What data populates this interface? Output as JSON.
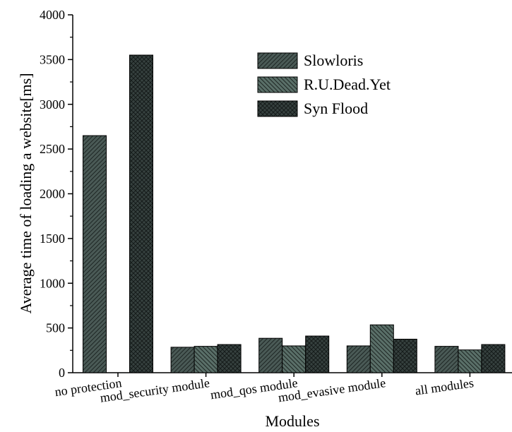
{
  "chart_data": {
    "type": "bar",
    "categories": [
      "no protection",
      "mod_security module",
      "mod_qos module",
      "mod_evasive module",
      "all modules"
    ],
    "series": [
      {
        "name": "Slowloris",
        "values": [
          2650,
          285,
          385,
          300,
          295
        ]
      },
      {
        "name": "R.U.Dead.Yet",
        "values": [
          0,
          295,
          300,
          535,
          255
        ]
      },
      {
        "name": "Syn Flood",
        "values": [
          3550,
          315,
          410,
          375,
          315
        ]
      }
    ],
    "title": "",
    "xlabel": "Modules",
    "ylabel": "Average time of loading a website[ms]",
    "ylim": [
      0,
      4000
    ],
    "yticks": [
      "0",
      "500",
      "1000",
      "1500",
      "2000",
      "2500",
      "3000",
      "3500",
      "4000"
    ],
    "legend_position": "top-right",
    "grid": false,
    "series_styles": [
      {
        "fill": "#4a5a56",
        "pattern": "hatch-forward"
      },
      {
        "fill": "#5a6f68",
        "pattern": "hatch-back"
      },
      {
        "fill": "#36413f",
        "pattern": "crosshatch"
      }
    ]
  }
}
